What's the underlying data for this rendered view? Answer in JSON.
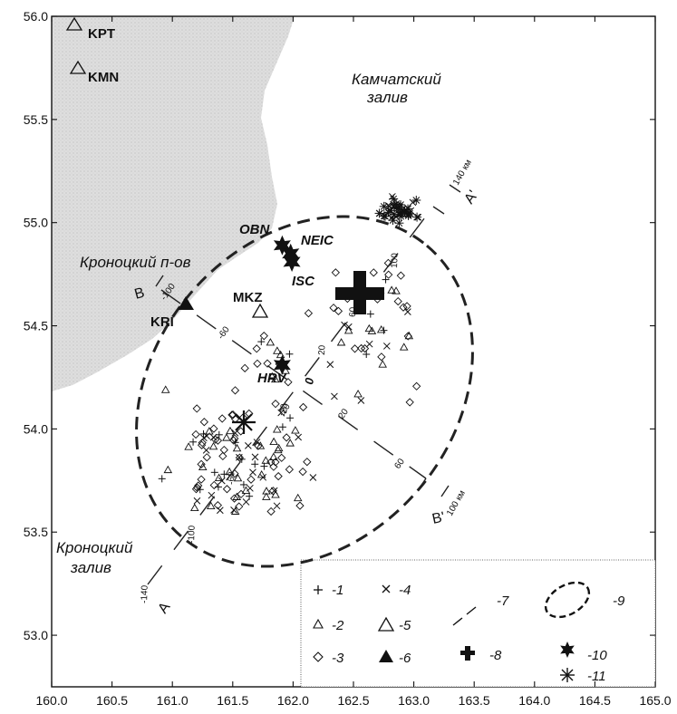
{
  "axes": {
    "x_ticks": [
      "160.0",
      "160.5",
      "161.0",
      "161.5",
      "162.0",
      "162.5",
      "163.0",
      "163.5",
      "164.0",
      "164.5",
      "165.0"
    ],
    "y_ticks": [
      "56.0",
      "55.5",
      "55.0",
      "54.5",
      "54.0",
      "53.5",
      "53.0"
    ],
    "xlim": [
      160.0,
      165.0
    ],
    "ylim": [
      52.75,
      56.0
    ]
  },
  "regions": {
    "bay_north": [
      "Камчатский",
      "залив"
    ],
    "peninsula": "Кроноцкий п-ов",
    "bay_south": [
      "Кроноцкий",
      "залив"
    ]
  },
  "stations": [
    {
      "code": "KPT",
      "lon": 160.22,
      "lat": 55.95,
      "symbol": "open-triangle"
    },
    {
      "code": "KMN",
      "lon": 160.22,
      "lat": 55.74,
      "symbol": "open-triangle"
    },
    {
      "code": "KRI",
      "lon": 161.12,
      "lat": 54.59,
      "symbol": "filled-triangle"
    },
    {
      "code": "MKZ",
      "lon": 161.72,
      "lat": 54.55,
      "symbol": "open-triangle"
    }
  ],
  "agency_solutions": [
    {
      "code": "OBN",
      "lon": 161.91,
      "lat": 54.89
    },
    {
      "code": "NEIC",
      "lon": 161.98,
      "lat": 54.85
    },
    {
      "code": "ISC",
      "lon": 161.99,
      "lat": 54.81
    },
    {
      "code": "HRV",
      "lon": 161.91,
      "lat": 54.31
    }
  ],
  "profiles": {
    "AA": {
      "start_label": "A",
      "end_label": "A'",
      "end_unit": "140 км",
      "ticks": [
        "-140",
        "-100",
        "-60",
        "-20",
        "0",
        "20",
        "60",
        "100"
      ]
    },
    "BB": {
      "start_label": "B",
      "end_label": "B'",
      "end_unit": "100 км",
      "ticks": [
        "-100",
        "-60",
        "-20",
        "20",
        "60"
      ]
    }
  },
  "legend": {
    "items": [
      {
        "symbol": "plus",
        "label": "-1"
      },
      {
        "symbol": "open-triangle-small",
        "label": "-2"
      },
      {
        "symbol": "diamond",
        "label": "-3"
      },
      {
        "symbol": "cross",
        "label": "-4"
      },
      {
        "symbol": "open-triangle-large",
        "label": "-5"
      },
      {
        "symbol": "filled-triangle",
        "label": "-6"
      },
      {
        "symbol": "dashed-line",
        "label": "-7"
      },
      {
        "symbol": "bold-plus",
        "label": "-8"
      },
      {
        "symbol": "dashed-ellipse",
        "label": "-9"
      },
      {
        "symbol": "filled-star",
        "label": "-10"
      },
      {
        "symbol": "asterisk",
        "label": "-11"
      }
    ]
  },
  "epicenter": {
    "lon": 162.55,
    "lat": 54.64
  },
  "asterisk_event": {
    "lon": 161.58,
    "lat": 54.0
  },
  "colors": {
    "land": "#d9d9d9",
    "ink": "#111111"
  }
}
